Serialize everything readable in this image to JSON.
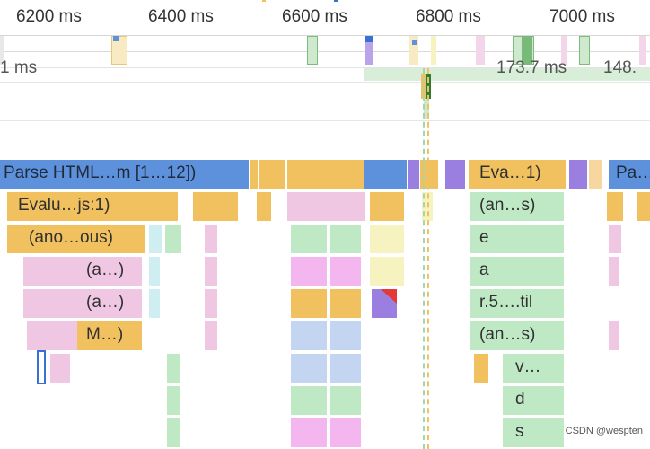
{
  "ruler": {
    "ticks": [
      "6200 ms",
      "6400 ms",
      "6600 ms",
      "6800 ms",
      "7000 ms"
    ]
  },
  "summary": {
    "left_clipped": "1 ms",
    "mid_value": "173.7 ms",
    "right_value": "148."
  },
  "flame": {
    "row0": [
      "Parse HTML…m [1…12])",
      "Eva…1)",
      "Pa…"
    ],
    "row1": [
      "Evalu…js:1)",
      "(an…s)"
    ],
    "row2": [
      "(ano…ous)",
      "e"
    ],
    "row3": [
      "(a…)",
      "a"
    ],
    "row4": [
      "(a…)",
      "r.5….til"
    ],
    "row5": [
      "M…)",
      "(an…s)"
    ],
    "row6": [
      "v…"
    ],
    "row7": [
      "d"
    ],
    "row8": [
      "s"
    ]
  },
  "watermark": "CSDN @wespten",
  "colors": {
    "parse_blue": "#5d91dc",
    "script_yellow": "#f0c15e",
    "pink": "#f0c7e2",
    "magenta": "#f3b6ef",
    "green": "#bfe8c4",
    "blueish": "#c4d5f2",
    "lightyellow": "#f7f3c0",
    "purple": "#9b7fe0",
    "red": "#e53935"
  }
}
